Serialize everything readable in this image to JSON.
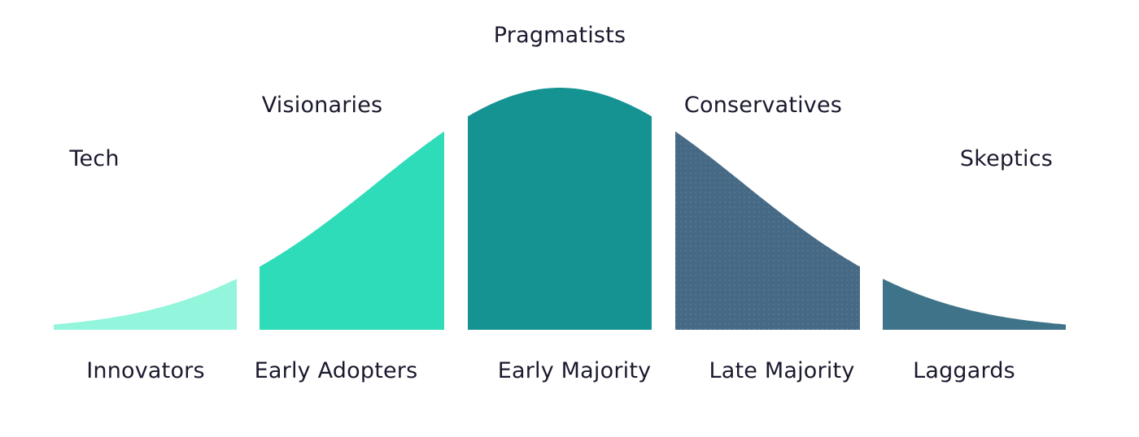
{
  "chart_data": {
    "type": "area",
    "segments": [
      {
        "persona": "Tech",
        "group": "Innovators",
        "color": "#92f5dc",
        "pattern": false
      },
      {
        "persona": "Visionaries",
        "group": "Early Adopters",
        "color": "#2edcb9",
        "pattern": false
      },
      {
        "persona": "Pragmatists",
        "group": "Early Majority",
        "color": "#159393",
        "pattern": false
      },
      {
        "persona": "Conservatives",
        "group": "Late Majority",
        "color": "#466a86",
        "pattern": true
      },
      {
        "persona": "Skeptics",
        "group": "Laggards",
        "color": "#3e7389",
        "pattern": false
      }
    ]
  }
}
